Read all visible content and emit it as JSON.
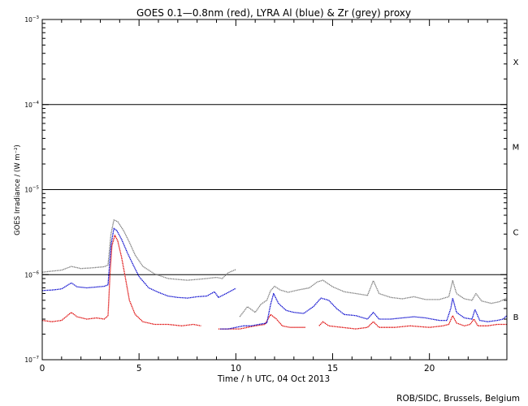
{
  "chart_data": {
    "type": "line",
    "title": "GOES 0.1—0.8nm (red), LYRA Al (blue) & Zr (grey) proxy",
    "xlabel": "Time / h UTC, 04 Oct 2013",
    "ylabel": "GOES Irradiance / (W m⁻²)",
    "xlim": [
      0,
      24
    ],
    "ylim": [
      1e-07,
      0.001
    ],
    "y_scale": "log",
    "x_ticks": [
      0,
      5,
      10,
      15,
      20
    ],
    "x_tick_labels": [
      "0",
      "5",
      "10",
      "15",
      "20"
    ],
    "y_tick_labels": [
      {
        "base": "10",
        "exp": "−7",
        "value": 1e-07
      },
      {
        "base": "10",
        "exp": "−6",
        "value": 1e-06
      },
      {
        "base": "10",
        "exp": "−5",
        "value": 1e-05
      },
      {
        "base": "10",
        "exp": "−4",
        "value": 0.0001
      },
      {
        "base": "10",
        "exp": "−3",
        "value": 0.001
      }
    ],
    "class_lines": [
      1e-06,
      1e-05,
      0.0001
    ],
    "class_labels": [
      {
        "label": "B",
        "value": 3.2e-07
      },
      {
        "label": "C",
        "value": 3.2e-06
      },
      {
        "label": "M",
        "value": 3.2e-05
      },
      {
        "label": "X",
        "value": 0.00032
      }
    ],
    "colors": {
      "red": "#dd0000",
      "blue": "#0000cc",
      "grey": "#7a7a7a",
      "axis": "#000000"
    },
    "series": [
      {
        "color": "red",
        "points": [
          [
            0.0,
            2.9e-07
          ],
          [
            0.5,
            2.8e-07
          ],
          [
            1.0,
            2.9e-07
          ],
          [
            1.3,
            3.3e-07
          ],
          [
            1.5,
            3.6e-07
          ],
          [
            1.8,
            3.2e-07
          ],
          [
            2.3,
            3e-07
          ],
          [
            2.8,
            3.1e-07
          ],
          [
            3.2,
            3e-07
          ],
          [
            3.4,
            3.3e-07
          ],
          [
            3.5,
            1e-06
          ],
          [
            3.6,
            2.2e-06
          ],
          [
            3.75,
            2.9e-06
          ],
          [
            3.9,
            2.5e-06
          ],
          [
            4.1,
            1.6e-06
          ],
          [
            4.3,
            9e-07
          ],
          [
            4.5,
            5e-07
          ],
          [
            4.8,
            3.4e-07
          ],
          [
            5.2,
            2.8e-07
          ],
          [
            5.8,
            2.6e-07
          ],
          [
            6.5,
            2.6e-07
          ],
          [
            7.2,
            2.5e-07
          ],
          [
            7.8,
            2.6e-07
          ],
          [
            8.2,
            2.5e-07
          ]
        ]
      },
      {
        "color": "red",
        "points": [
          [
            9.1,
            2.3e-07
          ],
          [
            9.6,
            2.3e-07
          ],
          [
            10.2,
            2.3e-07
          ],
          [
            10.6,
            2.4e-07
          ],
          [
            11.0,
            2.5e-07
          ],
          [
            11.5,
            2.6e-07
          ],
          [
            11.8,
            3.4e-07
          ],
          [
            12.1,
            3e-07
          ],
          [
            12.4,
            2.5e-07
          ],
          [
            12.8,
            2.4e-07
          ],
          [
            13.3,
            2.4e-07
          ],
          [
            13.6,
            2.4e-07
          ]
        ]
      },
      {
        "color": "red",
        "points": [
          [
            14.3,
            2.5e-07
          ],
          [
            14.5,
            2.8e-07
          ],
          [
            14.8,
            2.5e-07
          ],
          [
            15.5,
            2.4e-07
          ],
          [
            16.2,
            2.3e-07
          ],
          [
            16.8,
            2.4e-07
          ],
          [
            17.1,
            2.8e-07
          ],
          [
            17.4,
            2.4e-07
          ],
          [
            18.2,
            2.4e-07
          ],
          [
            19.0,
            2.5e-07
          ],
          [
            20.0,
            2.4e-07
          ],
          [
            20.7,
            2.5e-07
          ],
          [
            21.0,
            2.6e-07
          ],
          [
            21.2,
            3.3e-07
          ],
          [
            21.4,
            2.7e-07
          ],
          [
            21.8,
            2.5e-07
          ],
          [
            22.1,
            2.6e-07
          ],
          [
            22.3,
            3e-07
          ],
          [
            22.5,
            2.5e-07
          ],
          [
            23.0,
            2.5e-07
          ],
          [
            23.5,
            2.6e-07
          ],
          [
            24.0,
            2.6e-07
          ]
        ]
      },
      {
        "color": "blue",
        "points": [
          [
            0.0,
            6.5e-07
          ],
          [
            0.5,
            6.6e-07
          ],
          [
            1.0,
            6.8e-07
          ],
          [
            1.5,
            8e-07
          ],
          [
            1.8,
            7.2e-07
          ],
          [
            2.3,
            7e-07
          ],
          [
            3.2,
            7.3e-07
          ],
          [
            3.4,
            7.6e-07
          ],
          [
            3.55,
            2.2e-06
          ],
          [
            3.7,
            3.5e-06
          ],
          [
            3.85,
            3.3e-06
          ],
          [
            4.1,
            2.6e-06
          ],
          [
            4.4,
            1.8e-06
          ],
          [
            4.7,
            1.3e-06
          ],
          [
            5.0,
            9.5e-07
          ],
          [
            5.5,
            7e-07
          ],
          [
            6.0,
            6.2e-07
          ],
          [
            6.5,
            5.6e-07
          ],
          [
            7.0,
            5.4e-07
          ],
          [
            7.5,
            5.3e-07
          ],
          [
            8.0,
            5.5e-07
          ],
          [
            8.5,
            5.6e-07
          ],
          [
            8.9,
            6.3e-07
          ],
          [
            9.1,
            5.4e-07
          ],
          [
            9.5,
            6e-07
          ],
          [
            10.0,
            6.9e-07
          ]
        ]
      },
      {
        "color": "blue",
        "points": [
          [
            9.2,
            2.3e-07
          ],
          [
            9.6,
            2.3e-07
          ],
          [
            10.0,
            2.4e-07
          ],
          [
            10.4,
            2.5e-07
          ],
          [
            10.8,
            2.5e-07
          ],
          [
            11.2,
            2.6e-07
          ],
          [
            11.6,
            2.7e-07
          ],
          [
            11.8,
            4.5e-07
          ],
          [
            11.95,
            6e-07
          ],
          [
            12.2,
            4.6e-07
          ],
          [
            12.6,
            3.8e-07
          ],
          [
            13.0,
            3.6e-07
          ],
          [
            13.5,
            3.5e-07
          ],
          [
            14.0,
            4.2e-07
          ],
          [
            14.4,
            5.3e-07
          ],
          [
            14.8,
            5e-07
          ],
          [
            15.2,
            4e-07
          ],
          [
            15.6,
            3.4e-07
          ],
          [
            16.2,
            3.3e-07
          ],
          [
            16.8,
            3e-07
          ],
          [
            17.1,
            3.6e-07
          ],
          [
            17.4,
            3e-07
          ],
          [
            18.0,
            3e-07
          ],
          [
            18.6,
            3.1e-07
          ],
          [
            19.2,
            3.2e-07
          ],
          [
            19.8,
            3.1e-07
          ],
          [
            20.5,
            2.9e-07
          ],
          [
            20.9,
            2.9e-07
          ],
          [
            21.1,
            4e-07
          ],
          [
            21.2,
            5.3e-07
          ],
          [
            21.4,
            3.6e-07
          ],
          [
            21.8,
            3.1e-07
          ],
          [
            22.2,
            3e-07
          ],
          [
            22.35,
            3.9e-07
          ],
          [
            22.6,
            2.9e-07
          ],
          [
            23.0,
            2.8e-07
          ],
          [
            23.5,
            2.9e-07
          ],
          [
            23.8,
            3e-07
          ],
          [
            24.0,
            3.3e-07
          ]
        ]
      },
      {
        "color": "grey",
        "points": [
          [
            0.0,
            1.07e-06
          ],
          [
            0.5,
            1.1e-06
          ],
          [
            1.0,
            1.13e-06
          ],
          [
            1.5,
            1.25e-06
          ],
          [
            2.0,
            1.18e-06
          ],
          [
            2.5,
            1.2e-06
          ],
          [
            3.2,
            1.24e-06
          ],
          [
            3.4,
            1.3e-06
          ],
          [
            3.55,
            3e-06
          ],
          [
            3.7,
            4.4e-06
          ],
          [
            3.9,
            4.2e-06
          ],
          [
            4.2,
            3.3e-06
          ],
          [
            4.5,
            2.4e-06
          ],
          [
            4.8,
            1.7e-06
          ],
          [
            5.2,
            1.25e-06
          ],
          [
            5.8,
            1.02e-06
          ],
          [
            6.5,
            9e-07
          ],
          [
            7.0,
            8.8e-07
          ],
          [
            7.5,
            8.6e-07
          ],
          [
            8.0,
            8.8e-07
          ],
          [
            8.5,
            9e-07
          ],
          [
            9.0,
            9.3e-07
          ],
          [
            9.3,
            9e-07
          ],
          [
            9.6,
            1.05e-06
          ],
          [
            10.0,
            1.15e-06
          ]
        ]
      },
      {
        "color": "grey",
        "points": [
          [
            10.2,
            3.2e-07
          ],
          [
            10.6,
            4.2e-07
          ],
          [
            11.0,
            3.6e-07
          ],
          [
            11.3,
            4.5e-07
          ],
          [
            11.6,
            5e-07
          ],
          [
            11.8,
            6.5e-07
          ],
          [
            12.0,
            7.3e-07
          ],
          [
            12.3,
            6.6e-07
          ],
          [
            12.7,
            6.2e-07
          ],
          [
            13.2,
            6.6e-07
          ],
          [
            13.8,
            7e-07
          ],
          [
            14.2,
            8.2e-07
          ],
          [
            14.5,
            8.6e-07
          ],
          [
            15.0,
            7.2e-07
          ],
          [
            15.6,
            6.3e-07
          ],
          [
            16.2,
            6e-07
          ],
          [
            16.8,
            5.7e-07
          ],
          [
            17.1,
            8.5e-07
          ],
          [
            17.4,
            6e-07
          ],
          [
            18.0,
            5.4e-07
          ],
          [
            18.6,
            5.2e-07
          ],
          [
            19.2,
            5.5e-07
          ],
          [
            19.8,
            5.1e-07
          ],
          [
            20.5,
            5.1e-07
          ],
          [
            21.0,
            5.5e-07
          ],
          [
            21.2,
            8.5e-07
          ],
          [
            21.4,
            6e-07
          ],
          [
            21.8,
            5.2e-07
          ],
          [
            22.2,
            5e-07
          ],
          [
            22.4,
            6e-07
          ],
          [
            22.7,
            4.9e-07
          ],
          [
            23.2,
            4.6e-07
          ],
          [
            23.6,
            4.8e-07
          ],
          [
            24.0,
            5.3e-07
          ]
        ]
      }
    ],
    "footer": "ROB/SIDC, Brussels, Belgium"
  }
}
